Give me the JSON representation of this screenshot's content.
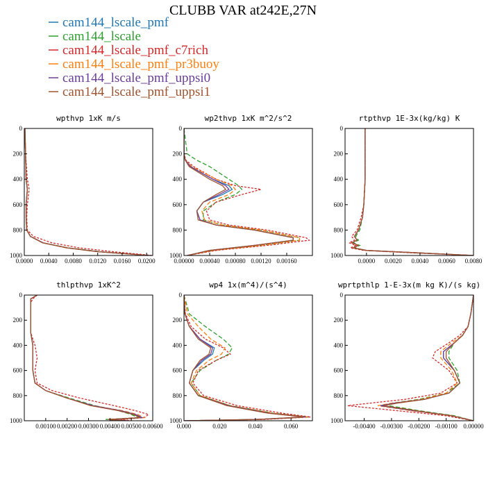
{
  "figure": {
    "title": "CLUBB VAR at242E,27N"
  },
  "legend": [
    {
      "name": "cam144_lscale_pmf",
      "color": "#1f77b4"
    },
    {
      "name": "cam144_lscale",
      "color": "#2ca02c"
    },
    {
      "name": "cam144_lscale_pmf_c7rich",
      "color": "#d62728"
    },
    {
      "name": "cam144_lscale_pmf_pr3buoy",
      "color": "#ff7f0e"
    },
    {
      "name": "cam144_lscale_pmf_uppsi0",
      "color": "#6a3d9a"
    },
    {
      "name": "cam144_lscale_pmf_uppsi1",
      "color": "#a0522d"
    }
  ],
  "chart_data": [
    {
      "type": "line",
      "title": "wpthvp  1xK m/s",
      "xlim": [
        0,
        0.021
      ],
      "ylim": [
        1000,
        0
      ],
      "xticks": [
        "0.0000",
        "0.0040",
        "0.0080",
        "0.0120",
        "0.0160",
        "0.0200"
      ],
      "xtick_values": [
        0,
        0.004,
        0.008,
        0.012,
        0.016,
        0.02
      ],
      "yticks": [
        "0",
        "200",
        "400",
        "600",
        "800",
        "1000"
      ],
      "y": [
        0,
        200,
        400,
        480,
        600,
        700,
        800,
        850,
        900,
        940,
        970,
        1000
      ],
      "series": [
        {
          "name": "cam144_lscale_pmf",
          "x": [
            0.0001,
            0.0002,
            0.0003,
            0.0005,
            0.0003,
            0.0003,
            0.0004,
            0.001,
            0.003,
            0.007,
            0.012,
            0.0205
          ]
        },
        {
          "name": "cam144_lscale",
          "x": [
            0.0001,
            0.0002,
            0.0003,
            0.0005,
            0.0003,
            0.0003,
            0.0004,
            0.001,
            0.003,
            0.0072,
            0.0125,
            0.0205
          ]
        },
        {
          "name": "cam144_lscale_pmf_c7rich",
          "x": [
            0.0001,
            0.0002,
            0.0005,
            0.0008,
            0.0005,
            0.0004,
            0.0005,
            0.0015,
            0.0045,
            0.009,
            0.0145,
            0.021
          ]
        },
        {
          "name": "cam144_lscale_pmf_pr3buoy",
          "x": [
            0.0001,
            0.0002,
            0.0003,
            0.0005,
            0.0003,
            0.0003,
            0.0004,
            0.001,
            0.003,
            0.0068,
            0.012,
            0.0203
          ]
        },
        {
          "name": "cam144_lscale_pmf_uppsi0",
          "x": [
            0.0001,
            0.0002,
            0.0003,
            0.0005,
            0.0003,
            0.0003,
            0.0004,
            0.001,
            0.0031,
            0.007,
            0.0122,
            0.0205
          ]
        },
        {
          "name": "cam144_lscale_pmf_uppsi1",
          "x": [
            0.0001,
            0.0002,
            0.0003,
            0.0005,
            0.0003,
            0.0003,
            0.0004,
            0.001,
            0.003,
            0.007,
            0.012,
            0.0204
          ]
        }
      ]
    },
    {
      "type": "line",
      "title": "wp2thvp  1xK m^2/s^2",
      "xlim": [
        0,
        0.002
      ],
      "ylim": [
        1000,
        0
      ],
      "xticks": [
        "0.00000",
        "0.00040",
        "0.00080",
        "0.00120",
        "0.00160"
      ],
      "xtick_values": [
        0,
        0.0004,
        0.0008,
        0.0012,
        0.0016
      ],
      "yticks": [
        "0",
        "200",
        "400",
        "600",
        "800",
        "1000"
      ],
      "y": [
        0,
        200,
        250,
        300,
        400,
        450,
        480,
        520,
        580,
        650,
        720,
        760,
        800,
        860,
        880,
        920,
        960,
        1000
      ],
      "series": [
        {
          "name": "cam144_lscale_pmf",
          "x": [
            0,
            0,
            2e-05,
            0.0001,
            0.00045,
            0.0007,
            0.00075,
            0.0006,
            0.0003,
            0.0002,
            0.00025,
            0.0005,
            0.0011,
            0.0017,
            0.0017,
            0.0011,
            0.0004,
            5e-05
          ]
        },
        {
          "name": "cam144_lscale",
          "x": [
            0,
            5e-05,
            0.0002,
            0.0004,
            0.0007,
            0.00085,
            0.0009,
            0.0008,
            0.0005,
            0.0003,
            0.0003,
            0.0006,
            0.0012,
            0.0018,
            0.0018,
            0.0012,
            0.00045,
            5e-05
          ]
        },
        {
          "name": "cam144_lscale_pmf_c7rich",
          "x": [
            0,
            0,
            3e-05,
            0.00015,
            0.0005,
            0.0008,
            0.0012,
            0.0009,
            0.0005,
            0.00035,
            0.0004,
            0.0007,
            0.0013,
            0.0019,
            0.00195,
            0.0013,
            0.0005,
            5e-05
          ]
        },
        {
          "name": "cam144_lscale_pmf_pr3buoy",
          "x": [
            0,
            0,
            2e-05,
            0.00012,
            0.0005,
            0.00075,
            0.0008,
            0.0007,
            0.0004,
            0.00028,
            0.00032,
            0.0006,
            0.0012,
            0.0018,
            0.0018,
            0.0012,
            0.00045,
            5e-05
          ]
        },
        {
          "name": "cam144_lscale_pmf_uppsi0",
          "x": [
            0,
            0,
            2e-05,
            0.0001,
            0.00045,
            0.00065,
            0.0007,
            0.00055,
            0.0003,
            0.0002,
            0.00025,
            0.0005,
            0.0011,
            0.0017,
            0.0017,
            0.0011,
            0.0004,
            5e-05
          ]
        },
        {
          "name": "cam144_lscale_pmf_uppsi1",
          "x": [
            0,
            0,
            2e-05,
            8e-05,
            0.0004,
            0.0006,
            0.00065,
            0.0005,
            0.0003,
            0.0002,
            0.00022,
            0.0005,
            0.0011,
            0.0017,
            0.0017,
            0.0011,
            0.0004,
            5e-05
          ]
        }
      ]
    },
    {
      "type": "line",
      "title": "rtpthvp  1E-3x(kg/kg) K",
      "xlim": [
        -0.0016,
        0.008
      ],
      "ylim": [
        1000,
        0
      ],
      "xticks": [
        "0.0000",
        "0.0020",
        "0.0040",
        "0.0060",
        "0.0080"
      ],
      "xtick_values": [
        0,
        0.002,
        0.004,
        0.006,
        0.008
      ],
      "yticks": [
        "0",
        "200",
        "400",
        "600",
        "800",
        "1000"
      ],
      "y": [
        0,
        200,
        400,
        600,
        700,
        800,
        850,
        880,
        900,
        920,
        940,
        960,
        980,
        1000
      ],
      "series": [
        {
          "name": "cam144_lscale_pmf",
          "x": [
            -0.0001,
            -0.0001,
            -0.0001,
            -0.0002,
            -0.0003,
            -0.0006,
            -0.0009,
            -0.0007,
            -0.0011,
            -0.0006,
            -0.001,
            0.0,
            0.004,
            0.008
          ]
        },
        {
          "name": "cam144_lscale",
          "x": [
            -0.0001,
            -0.0001,
            -0.0001,
            -0.0002,
            -0.0003,
            -0.0005,
            -0.0008,
            -0.0006,
            -0.001,
            -0.0005,
            -0.0009,
            0.0,
            0.004,
            0.008
          ]
        },
        {
          "name": "cam144_lscale_pmf_c7rich",
          "x": [
            -0.0001,
            -0.0001,
            -0.0001,
            -0.0002,
            -0.0004,
            -0.0007,
            -0.0011,
            -0.0009,
            -0.0013,
            -0.0008,
            -0.0012,
            -0.0002,
            0.0035,
            0.008
          ]
        },
        {
          "name": "cam144_lscale_pmf_pr3buoy",
          "x": [
            -0.0001,
            -0.0001,
            -0.0001,
            -0.0002,
            -0.0003,
            -0.0006,
            -0.0009,
            -0.0007,
            -0.0011,
            -0.0006,
            -0.001,
            0.0,
            0.004,
            0.008
          ]
        },
        {
          "name": "cam144_lscale_pmf_uppsi0",
          "x": [
            -0.0001,
            -0.0001,
            -0.0001,
            -0.0002,
            -0.0003,
            -0.0006,
            -0.0009,
            -0.0007,
            -0.0011,
            -0.0006,
            -0.001,
            0.0,
            0.004,
            0.008
          ]
        },
        {
          "name": "cam144_lscale_pmf_uppsi1",
          "x": [
            -0.0001,
            -0.0001,
            -0.0001,
            -0.0002,
            -0.0003,
            -0.0006,
            -0.0009,
            -0.0007,
            -0.0011,
            -0.0006,
            -0.001,
            0.0,
            0.004,
            0.008
          ]
        }
      ]
    },
    {
      "type": "line",
      "title": "thlpthvp  1xK^2",
      "xlim": [
        0,
        0.006
      ],
      "ylim": [
        1000,
        0
      ],
      "xticks": [
        "0.00100",
        "0.00200",
        "0.00300",
        "0.00400",
        "0.00500",
        "0.00600"
      ],
      "xtick_values": [
        0.001,
        0.002,
        0.003,
        0.004,
        0.005,
        0.006
      ],
      "yticks": [
        "0",
        "200",
        "400",
        "600",
        "800",
        "1000"
      ],
      "y": [
        0,
        30,
        60,
        150,
        300,
        400,
        500,
        600,
        700,
        760,
        820,
        880,
        920,
        950,
        975,
        990,
        1000
      ],
      "series": [
        {
          "name": "cam144_lscale_pmf",
          "x": [
            0.0006,
            0.0003,
            0.0003,
            0.0003,
            0.0003,
            0.0004,
            0.0004,
            0.0004,
            0.0005,
            0.001,
            0.002,
            0.0032,
            0.0045,
            0.0052,
            0.0055,
            0.004,
            0.0048
          ]
        },
        {
          "name": "cam144_lscale",
          "x": [
            0.0006,
            0.0003,
            0.0003,
            0.0003,
            0.0003,
            0.0004,
            0.0004,
            0.0004,
            0.0005,
            0.001,
            0.0021,
            0.0033,
            0.0044,
            0.005,
            0.0053,
            0.0038,
            0.0046
          ]
        },
        {
          "name": "cam144_lscale_pmf_c7rich",
          "x": [
            0.0006,
            0.0004,
            0.0003,
            0.0003,
            0.0003,
            0.0005,
            0.0006,
            0.0005,
            0.0006,
            0.0013,
            0.0026,
            0.0042,
            0.0052,
            0.0058,
            0.0056,
            0.0045,
            0.005
          ]
        },
        {
          "name": "cam144_lscale_pmf_pr3buoy",
          "x": [
            0.0006,
            0.0003,
            0.0003,
            0.0003,
            0.0003,
            0.0004,
            0.0004,
            0.0004,
            0.0005,
            0.001,
            0.002,
            0.0032,
            0.0046,
            0.0053,
            0.0056,
            0.0041,
            0.0049
          ]
        },
        {
          "name": "cam144_lscale_pmf_uppsi0",
          "x": [
            0.0006,
            0.0003,
            0.0003,
            0.0003,
            0.0003,
            0.0004,
            0.0004,
            0.0004,
            0.0005,
            0.001,
            0.002,
            0.0032,
            0.0045,
            0.0052,
            0.0055,
            0.004,
            0.0048
          ]
        },
        {
          "name": "cam144_lscale_pmf_uppsi1",
          "x": [
            0.0006,
            0.0003,
            0.0003,
            0.0003,
            0.0003,
            0.0004,
            0.0004,
            0.0004,
            0.0005,
            0.001,
            0.002,
            0.0031,
            0.0044,
            0.0051,
            0.0054,
            0.0039,
            0.0047
          ]
        }
      ]
    },
    {
      "type": "line",
      "title": "wp4  1x(m^4)/(s^4)",
      "xlim": [
        0,
        0.072
      ],
      "ylim": [
        1000,
        0
      ],
      "xticks": [
        "0.000",
        "0.020",
        "0.040",
        "0.060"
      ],
      "xtick_values": [
        0,
        0.02,
        0.04,
        0.06
      ],
      "yticks": [
        "0",
        "200",
        "400",
        "600",
        "800",
        "1000"
      ],
      "y": [
        0,
        150,
        250,
        350,
        420,
        470,
        520,
        600,
        700,
        800,
        880,
        940,
        970,
        990,
        1000
      ],
      "series": [
        {
          "name": "cam144_lscale_pmf",
          "x": [
            0,
            0.0005,
            0.003,
            0.009,
            0.017,
            0.016,
            0.011,
            0.005,
            0.003,
            0.008,
            0.025,
            0.048,
            0.068,
            0.04,
            0.0
          ]
        },
        {
          "name": "cam144_lscale",
          "x": [
            0,
            0.003,
            0.012,
            0.022,
            0.027,
            0.025,
            0.018,
            0.009,
            0.004,
            0.009,
            0.026,
            0.05,
            0.07,
            0.042,
            0.0
          ]
        },
        {
          "name": "cam144_lscale_pmf_c7rich",
          "x": [
            0,
            0.0008,
            0.004,
            0.012,
            0.022,
            0.026,
            0.018,
            0.008,
            0.005,
            0.011,
            0.03,
            0.055,
            0.071,
            0.045,
            0.0
          ]
        },
        {
          "name": "cam144_lscale_pmf_pr3buoy",
          "x": [
            0,
            0.002,
            0.008,
            0.015,
            0.023,
            0.021,
            0.014,
            0.007,
            0.004,
            0.009,
            0.026,
            0.05,
            0.069,
            0.042,
            0.0
          ]
        },
        {
          "name": "cam144_lscale_pmf_uppsi0",
          "x": [
            0,
            0.0005,
            0.003,
            0.009,
            0.016,
            0.015,
            0.01,
            0.005,
            0.003,
            0.008,
            0.025,
            0.048,
            0.068,
            0.04,
            0.0
          ]
        },
        {
          "name": "cam144_lscale_pmf_uppsi1",
          "x": [
            0,
            0.0005,
            0.003,
            0.008,
            0.015,
            0.014,
            0.009,
            0.005,
            0.003,
            0.008,
            0.024,
            0.047,
            0.067,
            0.04,
            0.0
          ]
        }
      ]
    },
    {
      "type": "line",
      "title": "wprtpthlp  1-E-3x(m kg K)/(s kg)",
      "xlim": [
        -0.0047,
        0.0
      ],
      "ylim": [
        1000,
        0
      ],
      "xticks": [
        "-0.00400",
        "-0.00300",
        "-0.00200",
        "-0.00100",
        "0.00000"
      ],
      "xtick_values": [
        -0.004,
        -0.003,
        -0.002,
        -0.001,
        0.0
      ],
      "yticks": [
        "0",
        "200",
        "400",
        "600",
        "800",
        "1000"
      ],
      "y": [
        0,
        150,
        250,
        320,
        380,
        450,
        500,
        600,
        700,
        780,
        830,
        860,
        880,
        920,
        960,
        1000
      ],
      "series": [
        {
          "name": "cam144_lscale_pmf",
          "x": [
            0,
            -0.0001,
            -0.0002,
            -0.0004,
            -0.0007,
            -0.0011,
            -0.0011,
            -0.0007,
            -0.0005,
            -0.0009,
            -0.0018,
            -0.0029,
            -0.0034,
            -0.0022,
            -0.0008,
            0
          ]
        },
        {
          "name": "cam144_lscale",
          "x": [
            0,
            -0.0001,
            -0.0002,
            -0.0004,
            -0.0007,
            -0.0009,
            -0.0009,
            -0.0006,
            -0.0005,
            -0.001,
            -0.002,
            -0.003,
            -0.0031,
            -0.002,
            -0.0007,
            0
          ]
        },
        {
          "name": "cam144_lscale_pmf_c7rich",
          "x": [
            0,
            -0.0001,
            -0.0002,
            -0.0005,
            -0.0009,
            -0.0014,
            -0.0015,
            -0.0009,
            -0.0006,
            -0.0012,
            -0.0025,
            -0.0038,
            -0.0046,
            -0.0028,
            -0.001,
            0
          ]
        },
        {
          "name": "cam144_lscale_pmf_pr3buoy",
          "x": [
            0,
            -0.0001,
            -0.0002,
            -0.0004,
            -0.0008,
            -0.0012,
            -0.0012,
            -0.0008,
            -0.0006,
            -0.001,
            -0.0019,
            -0.003,
            -0.0035,
            -0.0023,
            -0.0008,
            0
          ]
        },
        {
          "name": "cam144_lscale_pmf_uppsi0",
          "x": [
            0,
            -0.0001,
            -0.0002,
            -0.0004,
            -0.0007,
            -0.0011,
            -0.0011,
            -0.0007,
            -0.0005,
            -0.0009,
            -0.0018,
            -0.0029,
            -0.0034,
            -0.0022,
            -0.0008,
            0
          ]
        },
        {
          "name": "cam144_lscale_pmf_uppsi1",
          "x": [
            0,
            -0.0001,
            -0.0002,
            -0.0004,
            -0.0007,
            -0.001,
            -0.001,
            -0.0007,
            -0.0005,
            -0.0009,
            -0.0018,
            -0.0028,
            -0.0033,
            -0.0021,
            -0.0008,
            0
          ]
        }
      ]
    }
  ]
}
